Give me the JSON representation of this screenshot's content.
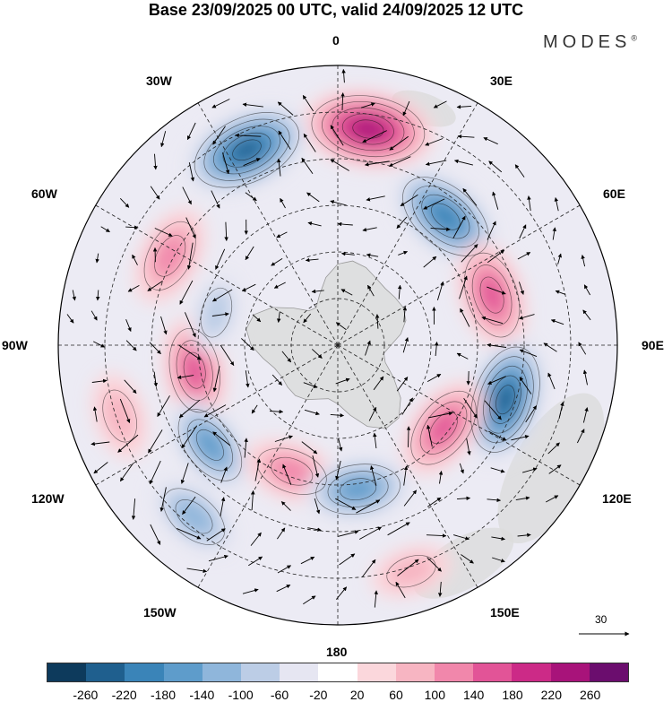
{
  "title": "Base 23/09/2025 00 UTC, valid 24/09/2025 12 UTC",
  "brand": "MODES",
  "brand_mark": "®",
  "longitude_labels": {
    "n": "0",
    "ne30": "30E",
    "ne60": "60E",
    "e": "90E",
    "se120": "120E",
    "se150": "150E",
    "s": "180",
    "sw150": "150W",
    "sw120": "120W",
    "w": "90W",
    "nw60": "60W",
    "nw30": "30W"
  },
  "reference_vector": "30",
  "colorbar": {
    "colors": [
      "#0d3a5c",
      "#1f5f8e",
      "#3a84b8",
      "#5e9ccb",
      "#8fb6db",
      "#bccde6",
      "#e6e6f2",
      "#ffffff",
      "#fbd7dc",
      "#f7b5c2",
      "#f187ab",
      "#e25497",
      "#cc2a87",
      "#a8137a",
      "#6b0d6e"
    ],
    "ticks": [
      "-260",
      "-220",
      "-180",
      "-140",
      "-100",
      "-60",
      "-20",
      "20",
      "60",
      "100",
      "140",
      "180",
      "220",
      "260"
    ]
  },
  "anomaly_centers": [
    {
      "lon": 8,
      "colat": 0.78,
      "value": 240
    },
    {
      "lon": -25,
      "colat": 0.77,
      "value": -230
    },
    {
      "lon": 40,
      "colat": 0.6,
      "value": -200
    },
    {
      "lon": 72,
      "colat": 0.58,
      "value": 160
    },
    {
      "lon": 108,
      "colat": 0.63,
      "value": -220
    },
    {
      "lon": 128,
      "colat": 0.48,
      "value": 150
    },
    {
      "lon": -62,
      "colat": 0.68,
      "value": 130
    },
    {
      "lon": -100,
      "colat": 0.52,
      "value": 150
    },
    {
      "lon": -128,
      "colat": 0.58,
      "value": -140
    },
    {
      "lon": -160,
      "colat": 0.48,
      "value": 120
    },
    {
      "lon": 172,
      "colat": 0.52,
      "value": -150
    },
    {
      "lon": -140,
      "colat": 0.8,
      "value": -120
    },
    {
      "lon": 162,
      "colat": 0.85,
      "value": 60
    },
    {
      "lon": -75,
      "colat": 0.45,
      "value": -60
    },
    {
      "lon": -108,
      "colat": 0.82,
      "value": 80
    }
  ]
}
